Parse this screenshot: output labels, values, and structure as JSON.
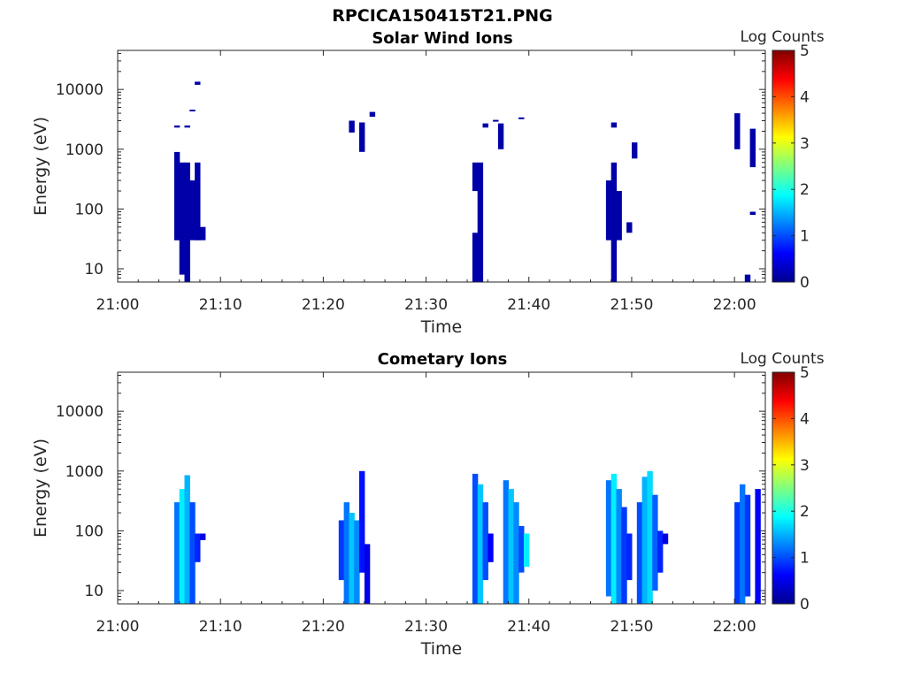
{
  "figure_title": "RPCICA150415T21.PNG",
  "chart_data": [
    {
      "type": "heatmap",
      "title": "Solar Wind Ions",
      "xlabel": "Time",
      "ylabel": "Energy (eV)",
      "x_ticks": [
        "21:00",
        "21:10",
        "21:20",
        "21:30",
        "21:40",
        "21:50",
        "22:00"
      ],
      "xlim": [
        "21:00",
        "22:03"
      ],
      "y_scale": "log",
      "y_ticks": [
        "10",
        "100",
        "1000",
        "10000"
      ],
      "ylim": [
        6,
        45000
      ],
      "colorbar": {
        "label": "Log Counts",
        "range": [
          0,
          5
        ],
        "ticks": [
          "0",
          "1",
          "2",
          "3",
          "4",
          "5"
        ],
        "colormap": "jet"
      },
      "cells": [
        {
          "t": "21:05.5",
          "e": [
            30,
            900
          ],
          "v": 0.2
        },
        {
          "t": "21:06.0",
          "e": [
            8,
            600
          ],
          "v": 0.2
        },
        {
          "t": "21:06.5",
          "e": [
            6,
            600
          ],
          "v": 0.2
        },
        {
          "t": "21:07.0",
          "e": [
            30,
            300
          ],
          "v": 0.2
        },
        {
          "t": "21:07.5",
          "e": [
            30,
            600
          ],
          "v": 0.2
        },
        {
          "t": "21:08.0",
          "e": [
            30,
            50
          ],
          "v": 0.2
        },
        {
          "t": "21:05.5",
          "e": [
            2300,
            2500
          ],
          "v": 0.2
        },
        {
          "t": "21:06.5",
          "e": [
            2300,
            2500
          ],
          "v": 0.2
        },
        {
          "t": "21:07.0",
          "e": [
            4300,
            4600
          ],
          "v": 0.2
        },
        {
          "t": "21:07.5",
          "e": [
            12000,
            13500
          ],
          "v": 0.2
        },
        {
          "t": "21:22.5",
          "e": [
            1900,
            3000
          ],
          "v": 0.2
        },
        {
          "t": "21:23.5",
          "e": [
            900,
            2800
          ],
          "v": 0.2
        },
        {
          "t": "21:24.5",
          "e": [
            3500,
            4200
          ],
          "v": 0.2
        },
        {
          "t": "21:34.5",
          "e": [
            6,
            40
          ],
          "v": 0.2
        },
        {
          "t": "21:35.0",
          "e": [
            6,
            600
          ],
          "v": 0.2
        },
        {
          "t": "21:34.5",
          "e": [
            200,
            600
          ],
          "v": 0.2
        },
        {
          "t": "21:35.5",
          "e": [
            2300,
            2700
          ],
          "v": 0.2
        },
        {
          "t": "21:36.5",
          "e": [
            2900,
            3100
          ],
          "v": 0.2
        },
        {
          "t": "21:37.0",
          "e": [
            1000,
            2700
          ],
          "v": 0.2
        },
        {
          "t": "21:39.0",
          "e": [
            3200,
            3400
          ],
          "v": 0.2
        },
        {
          "t": "21:47.5",
          "e": [
            30,
            300
          ],
          "v": 0.2
        },
        {
          "t": "21:48.0",
          "e": [
            6,
            600
          ],
          "v": 0.2
        },
        {
          "t": "21:48.5",
          "e": [
            30,
            200
          ],
          "v": 0.2
        },
        {
          "t": "21:49.5",
          "e": [
            40,
            60
          ],
          "v": 0.2
        },
        {
          "t": "21:48.0",
          "e": [
            2300,
            2800
          ],
          "v": 0.2
        },
        {
          "t": "21:50.0",
          "e": [
            700,
            1300
          ],
          "v": 0.2
        },
        {
          "t": "22:00.0",
          "e": [
            1000,
            4000
          ],
          "v": 0.2
        },
        {
          "t": "22:01.5",
          "e": [
            500,
            2200
          ],
          "v": 0.2
        },
        {
          "t": "22:01.5",
          "e": [
            80,
            90
          ],
          "v": 0.2
        },
        {
          "t": "22:01.0",
          "e": [
            6,
            8
          ],
          "v": 0.2
        }
      ]
    },
    {
      "type": "heatmap",
      "title": "Cometary Ions",
      "xlabel": "Time",
      "ylabel": "Energy (eV)",
      "x_ticks": [
        "21:00",
        "21:10",
        "21:20",
        "21:30",
        "21:40",
        "21:50",
        "22:00"
      ],
      "xlim": [
        "21:00",
        "22:03"
      ],
      "y_scale": "log",
      "y_ticks": [
        "10",
        "100",
        "1000",
        "10000"
      ],
      "ylim": [
        6,
        45000
      ],
      "colorbar": {
        "label": "Log Counts",
        "range": [
          0,
          5
        ],
        "ticks": [
          "0",
          "1",
          "2",
          "3",
          "4",
          "5"
        ],
        "colormap": "jet"
      },
      "cells": [
        {
          "t": "21:05.5",
          "e": [
            6,
            300
          ],
          "v": 1.2
        },
        {
          "t": "21:06.0",
          "e": [
            6,
            500
          ],
          "v": 1.8
        },
        {
          "t": "21:06.5",
          "e": [
            6,
            850
          ],
          "v": 1.5
        },
        {
          "t": "21:07.0",
          "e": [
            6,
            300
          ],
          "v": 1.0
        },
        {
          "t": "21:07.5",
          "e": [
            30,
            90
          ],
          "v": 0.8
        },
        {
          "t": "21:08.0",
          "e": [
            70,
            90
          ],
          "v": 0.5
        },
        {
          "t": "21:21.5",
          "e": [
            15,
            150
          ],
          "v": 0.9
        },
        {
          "t": "21:22.0",
          "e": [
            6,
            300
          ],
          "v": 1.2
        },
        {
          "t": "21:22.5",
          "e": [
            6,
            200
          ],
          "v": 1.6
        },
        {
          "t": "21:23.0",
          "e": [
            6,
            150
          ],
          "v": 1.3
        },
        {
          "t": "21:23.5",
          "e": [
            20,
            1000
          ],
          "v": 0.7
        },
        {
          "t": "21:24.0",
          "e": [
            6,
            60
          ],
          "v": 0.5
        },
        {
          "t": "21:34.5",
          "e": [
            6,
            900
          ],
          "v": 1.0
        },
        {
          "t": "21:35.0",
          "e": [
            6,
            600
          ],
          "v": 1.6
        },
        {
          "t": "21:35.5",
          "e": [
            15,
            300
          ],
          "v": 1.0
        },
        {
          "t": "21:36.0",
          "e": [
            30,
            90
          ],
          "v": 0.6
        },
        {
          "t": "21:37.5",
          "e": [
            6,
            700
          ],
          "v": 1.2
        },
        {
          "t": "21:38.0",
          "e": [
            6,
            500
          ],
          "v": 1.6
        },
        {
          "t": "21:38.5",
          "e": [
            6,
            300
          ],
          "v": 1.3
        },
        {
          "t": "21:39.0",
          "e": [
            20,
            120
          ],
          "v": 1.0
        },
        {
          "t": "21:39.5",
          "e": [
            25,
            90
          ],
          "v": 1.8
        },
        {
          "t": "21:47.5",
          "e": [
            8,
            700
          ],
          "v": 1.2
        },
        {
          "t": "21:48.0",
          "e": [
            6,
            900
          ],
          "v": 1.8
        },
        {
          "t": "21:48.5",
          "e": [
            6,
            500
          ],
          "v": 1.3
        },
        {
          "t": "21:49.0",
          "e": [
            6,
            250
          ],
          "v": 0.9
        },
        {
          "t": "21:49.5",
          "e": [
            15,
            90
          ],
          "v": 0.8
        },
        {
          "t": "21:50.5",
          "e": [
            6,
            300
          ],
          "v": 1.0
        },
        {
          "t": "21:51.0",
          "e": [
            6,
            800
          ],
          "v": 1.5
        },
        {
          "t": "21:51.5",
          "e": [
            6,
            1000
          ],
          "v": 1.7
        },
        {
          "t": "21:52.0",
          "e": [
            10,
            400
          ],
          "v": 1.1
        },
        {
          "t": "21:52.5",
          "e": [
            20,
            100
          ],
          "v": 0.8
        },
        {
          "t": "21:53.0",
          "e": [
            60,
            90
          ],
          "v": 0.5
        },
        {
          "t": "22:00.0",
          "e": [
            6,
            300
          ],
          "v": 0.9
        },
        {
          "t": "22:00.5",
          "e": [
            6,
            600
          ],
          "v": 1.2
        },
        {
          "t": "22:01.0",
          "e": [
            8,
            400
          ],
          "v": 0.9
        },
        {
          "t": "22:02.0",
          "e": [
            6,
            500
          ],
          "v": 0.6
        }
      ]
    }
  ]
}
